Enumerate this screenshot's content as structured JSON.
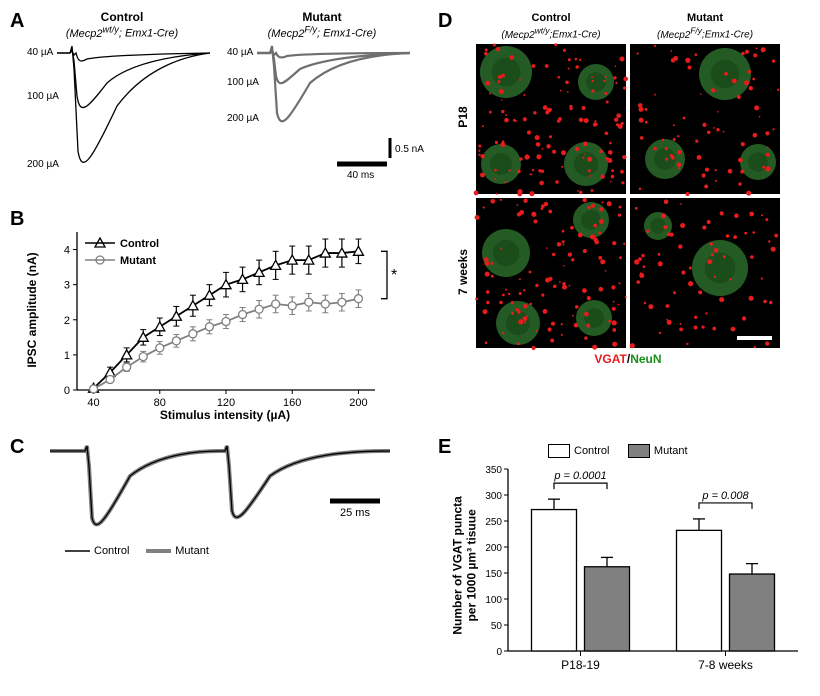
{
  "panelA": {
    "label": "A",
    "control": {
      "title": "Control",
      "subtitle": "(Mecp2<sup>wt/y</sup>; Emx1-Cre)",
      "traces_color": "#000000",
      "mu_labels": [
        "40 µA",
        "100 µA",
        "200 µA"
      ]
    },
    "mutant": {
      "title": "Mutant",
      "subtitle": "(Mecp2<sup>F/y</sup>; Emx1-Cre)",
      "traces_color": "#6f6f6f",
      "mu_labels": [
        "40 µA",
        "100 µA",
        "200 µA"
      ]
    },
    "scale": {
      "y": "0.5 nA",
      "x": "40 ms"
    }
  },
  "panelB": {
    "label": "B",
    "series": [
      {
        "name": "Control",
        "marker": "triangle",
        "color": "#000000",
        "x": [
          40,
          50,
          60,
          70,
          80,
          90,
          100,
          110,
          120,
          130,
          140,
          150,
          160,
          170,
          180,
          190,
          200
        ],
        "y": [
          0.05,
          0.5,
          1.0,
          1.5,
          1.8,
          2.1,
          2.4,
          2.7,
          3.0,
          3.15,
          3.35,
          3.55,
          3.7,
          3.7,
          3.9,
          3.9,
          3.95
        ],
        "err": [
          0.02,
          0.15,
          0.2,
          0.22,
          0.25,
          0.28,
          0.3,
          0.3,
          0.35,
          0.35,
          0.35,
          0.4,
          0.4,
          0.4,
          0.4,
          0.4,
          0.35
        ]
      },
      {
        "name": "Mutant",
        "marker": "circle",
        "color": "#808080",
        "x": [
          40,
          50,
          60,
          70,
          80,
          90,
          100,
          110,
          120,
          130,
          140,
          150,
          160,
          170,
          180,
          190,
          200
        ],
        "y": [
          0.03,
          0.3,
          0.65,
          0.95,
          1.2,
          1.4,
          1.6,
          1.8,
          1.95,
          2.15,
          2.3,
          2.45,
          2.4,
          2.5,
          2.45,
          2.5,
          2.6
        ],
        "err": [
          0.02,
          0.1,
          0.12,
          0.15,
          0.18,
          0.18,
          0.2,
          0.2,
          0.2,
          0.2,
          0.25,
          0.25,
          0.25,
          0.25,
          0.25,
          0.25,
          0.25
        ]
      }
    ],
    "xlim": [
      30,
      210
    ],
    "ylim": [
      0,
      4.5
    ],
    "xticks": [
      40,
      80,
      120,
      160,
      200
    ],
    "yticks": [
      0,
      1,
      2,
      3,
      4
    ],
    "xlabel": "Stimulus intensity (µA)",
    "ylabel": "IPSC amplitude (nA)",
    "sig": "*"
  },
  "panelC": {
    "label": "C",
    "legend": [
      {
        "name": "Control",
        "color": "#000000",
        "width": 1.3
      },
      {
        "name": "Mutant",
        "color": "#808080",
        "width": 2.5
      }
    ],
    "scale": "25 ms"
  },
  "panelD": {
    "label": "D",
    "cols": [
      {
        "title": "Control",
        "subtitle": "(Mecp2<sup>wt/y</sup>;Emx1-Cre)"
      },
      {
        "title": "Mutant",
        "subtitle": "(Mecp2<sup>F/y</sup>;Emx1-Cre)"
      }
    ],
    "rows": [
      "P18",
      "7 weeks"
    ],
    "caption_red": "VGAT",
    "caption_sep": "/",
    "caption_green": "NeuN",
    "micrograph": {
      "bg": "#000000",
      "neun_color": "#2a6b2a",
      "vgat_color": "#e81c1c",
      "cells": {
        "r0c0": {
          "puncta": 130,
          "blobs": [
            [
              30,
              28,
              26
            ],
            [
              120,
              38,
              18
            ],
            [
              25,
              120,
              20
            ],
            [
              110,
              120,
              22
            ]
          ]
        },
        "r0c1": {
          "puncta": 75,
          "blobs": [
            [
              95,
              30,
              26
            ],
            [
              35,
              115,
              20
            ],
            [
              128,
              118,
              18
            ]
          ]
        },
        "r1c0": {
          "puncta": 115,
          "blobs": [
            [
              30,
              55,
              24
            ],
            [
              115,
              22,
              18
            ],
            [
              42,
              125,
              22
            ],
            [
              118,
              120,
              18
            ]
          ]
        },
        "r1c1": {
          "puncta": 70,
          "blobs": [
            [
              90,
              70,
              28
            ],
            [
              28,
              28,
              14
            ]
          ]
        }
      }
    }
  },
  "panelE": {
    "label": "E",
    "ylabel_line1": "Number of VGAT puncta",
    "ylabel_line2": "per 1000 µm³ tisuue",
    "legend": [
      {
        "name": "Control",
        "fill": "#ffffff"
      },
      {
        "name": "Mutant",
        "fill": "#808080"
      }
    ],
    "groups": [
      {
        "name": "P18-19",
        "control": {
          "mean": 272,
          "err": 20
        },
        "mutant": {
          "mean": 162,
          "err": 18
        },
        "p": "p = 0.0001"
      },
      {
        "name": "7-8 weeks",
        "control": {
          "mean": 232,
          "err": 22
        },
        "mutant": {
          "mean": 148,
          "err": 20
        },
        "p": "p = 0.008"
      }
    ],
    "ylim": [
      0,
      350
    ],
    "yticks": [
      0,
      50,
      100,
      150,
      200,
      250,
      300,
      350
    ],
    "bar_border": "#000000"
  }
}
